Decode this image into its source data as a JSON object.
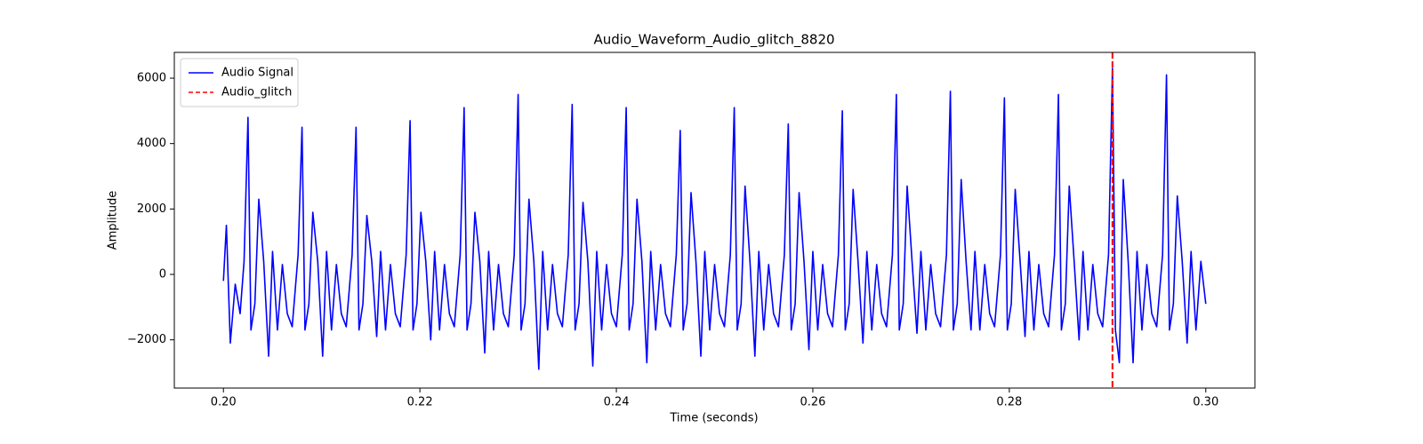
{
  "chart_data": {
    "type": "line",
    "title": "Audio_Waveform_Audio_glitch_8820",
    "xlabel": "Time (seconds)",
    "ylabel": "Amplitude",
    "xlim": [
      0.195,
      0.305
    ],
    "ylim": [
      -3475,
      6788
    ],
    "xticks": [
      {
        "value": 0.2,
        "label": "0.20"
      },
      {
        "value": 0.22,
        "label": "0.22"
      },
      {
        "value": 0.24,
        "label": "0.24"
      },
      {
        "value": 0.26,
        "label": "0.26"
      },
      {
        "value": 0.28,
        "label": "0.28"
      },
      {
        "value": 0.3,
        "label": "0.30"
      }
    ],
    "yticks": [
      {
        "value": -2000,
        "label": "−2000"
      },
      0,
      2000,
      4000,
      6000
    ],
    "legend": "upper left",
    "x": [
      0.2,
      0.2003,
      0.2007,
      0.2012,
      0.2017,
      0.2021,
      0.2025,
      0.2028,
      0.2032,
      0.2036,
      0.2041,
      0.2046,
      0.205,
      0.2055,
      0.206,
      0.2065,
      0.207,
      0.2076,
      0.208,
      0.2083,
      0.2087,
      0.2091,
      0.2096,
      0.2101,
      0.2105,
      0.211,
      0.2115,
      0.212,
      0.2125,
      0.2131,
      0.2135,
      0.2138,
      0.2142,
      0.2146,
      0.2151,
      0.2156,
      0.216,
      0.2165,
      0.217,
      0.2175,
      0.218,
      0.2186,
      0.219,
      0.2193,
      0.2197,
      0.2201,
      0.2206,
      0.2211,
      0.2215,
      0.222,
      0.2225,
      0.223,
      0.2235,
      0.2241,
      0.2245,
      0.2248,
      0.2252,
      0.2256,
      0.2261,
      0.2266,
      0.227,
      0.2275,
      0.228,
      0.2285,
      0.229,
      0.2296,
      0.23,
      0.2303,
      0.2307,
      0.2311,
      0.2316,
      0.2321,
      0.2325,
      0.233,
      0.2335,
      0.234,
      0.2345,
      0.2351,
      0.2355,
      0.2358,
      0.2362,
      0.2366,
      0.2371,
      0.2376,
      0.238,
      0.2385,
      0.239,
      0.2395,
      0.24,
      0.2406,
      0.241,
      0.2413,
      0.2417,
      0.2421,
      0.2426,
      0.2431,
      0.2435,
      0.244,
      0.2445,
      0.245,
      0.2455,
      0.2461,
      0.2465,
      0.2468,
      0.2472,
      0.2476,
      0.2481,
      0.2486,
      0.249,
      0.2495,
      0.25,
      0.2505,
      0.251,
      0.2516,
      0.252,
      0.2523,
      0.2527,
      0.2531,
      0.2536,
      0.2541,
      0.2545,
      0.255,
      0.2555,
      0.256,
      0.2565,
      0.2571,
      0.2575,
      0.2578,
      0.2582,
      0.2586,
      0.2591,
      0.2596,
      0.26,
      0.2605,
      0.261,
      0.2615,
      0.262,
      0.2626,
      0.263,
      0.2633,
      0.2637,
      0.2641,
      0.2646,
      0.2651,
      0.2655,
      0.266,
      0.2665,
      0.267,
      0.2675,
      0.2681,
      0.2685,
      0.2688,
      0.2692,
      0.2696,
      0.2701,
      0.2706,
      0.271,
      0.2715,
      0.272,
      0.2725,
      0.273,
      0.2736,
      0.274,
      0.2743,
      0.2747,
      0.2751,
      0.2756,
      0.2761,
      0.2765,
      0.277,
      0.2775,
      0.278,
      0.2785,
      0.2791,
      0.2795,
      0.2798,
      0.2802,
      0.2806,
      0.2811,
      0.2816,
      0.282,
      0.2825,
      0.283,
      0.2835,
      0.284,
      0.2846,
      0.285,
      0.2853,
      0.2857,
      0.2861,
      0.2866,
      0.2871,
      0.2875,
      0.288,
      0.2885,
      0.289,
      0.2895,
      0.2901,
      0.2905,
      0.2908,
      0.2912,
      0.2916,
      0.2921,
      0.2926,
      0.293,
      0.2935,
      0.294,
      0.2945,
      0.295,
      0.2956,
      0.296,
      0.2963,
      0.2967,
      0.2971,
      0.2976,
      0.2981,
      0.2985,
      0.299,
      0.2995,
      0.3
    ],
    "series": [
      {
        "name": "Audio Signal",
        "color": "#0000ff",
        "values": [
          -200,
          1500,
          -2100,
          -300,
          -1200,
          400,
          4800,
          -1700,
          -900,
          2300,
          400,
          -2500,
          700,
          -1700,
          300,
          -1200,
          -1600,
          600,
          4500,
          -1700,
          -900,
          1900,
          400,
          -2500,
          700,
          -1700,
          300,
          -1200,
          -1600,
          600,
          4500,
          -1700,
          -900,
          1800,
          400,
          -1900,
          700,
          -1700,
          300,
          -1200,
          -1600,
          600,
          4700,
          -1700,
          -900,
          1900,
          400,
          -2000,
          700,
          -1700,
          300,
          -1200,
          -1600,
          600,
          5100,
          -1700,
          -900,
          1900,
          400,
          -2400,
          700,
          -1700,
          300,
          -1200,
          -1600,
          600,
          5500,
          -1700,
          -900,
          2300,
          400,
          -2900,
          700,
          -1700,
          300,
          -1200,
          -1600,
          600,
          5200,
          -1700,
          -900,
          2200,
          400,
          -2800,
          700,
          -1700,
          300,
          -1200,
          -1600,
          600,
          5100,
          -1700,
          -900,
          2300,
          400,
          -2700,
          700,
          -1700,
          300,
          -1200,
          -1600,
          600,
          4400,
          -1700,
          -900,
          2500,
          400,
          -2500,
          700,
          -1700,
          300,
          -1200,
          -1600,
          600,
          5100,
          -1700,
          -900,
          2700,
          400,
          -2500,
          700,
          -1700,
          300,
          -1200,
          -1600,
          600,
          4600,
          -1700,
          -900,
          2500,
          400,
          -2300,
          700,
          -1700,
          300,
          -1200,
          -1600,
          600,
          5000,
          -1700,
          -900,
          2600,
          400,
          -2100,
          700,
          -1700,
          300,
          -1200,
          -1600,
          600,
          5500,
          -1700,
          -900,
          2700,
          400,
          -1800,
          700,
          -1700,
          300,
          -1200,
          -1600,
          600,
          5600,
          -1700,
          -900,
          2900,
          400,
          -1700,
          700,
          -1700,
          300,
          -1200,
          -1600,
          600,
          5400,
          -1700,
          -900,
          2600,
          400,
          -1900,
          700,
          -1700,
          300,
          -1200,
          -1600,
          600,
          5500,
          -1700,
          -900,
          2700,
          400,
          -2000,
          700,
          -1700,
          300,
          -1200,
          -1600,
          600,
          6300,
          -1700,
          -2700,
          2900,
          400,
          -2700,
          700,
          -1700,
          300,
          -1200,
          -1600,
          600,
          6100,
          -1700,
          -900,
          2400,
          400,
          -2100,
          700,
          -1700,
          400,
          -900
        ]
      }
    ],
    "vlines": [
      {
        "name": "Audio_glitch",
        "x": 0.2905,
        "color": "#ff0000"
      }
    ]
  }
}
